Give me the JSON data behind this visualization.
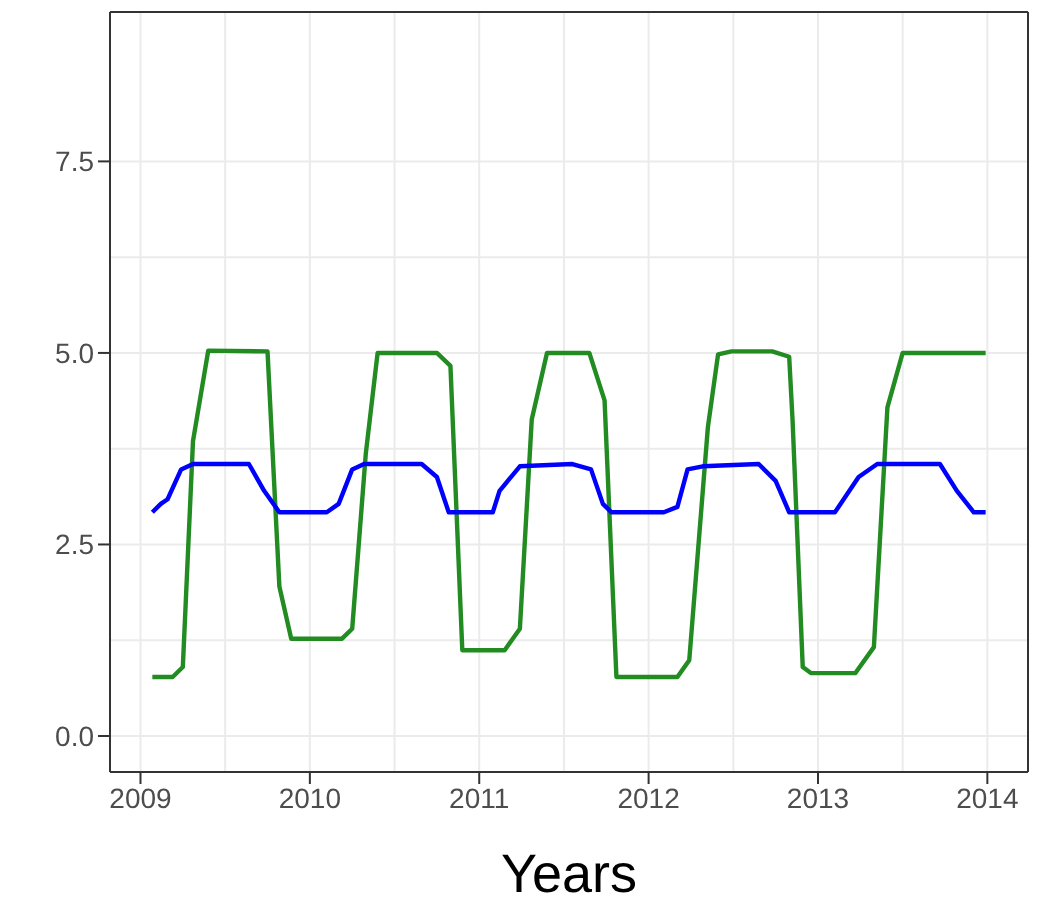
{
  "chart_data": {
    "type": "line",
    "xlabel": "Years",
    "xlim": [
      2008.82,
      2014.24
    ],
    "xticks": [
      2009,
      2010,
      2011,
      2012,
      2013,
      2014
    ],
    "ylim": [
      -0.47,
      9.45
    ],
    "yticks": [
      {
        "value": 0,
        "label": "0.0"
      },
      {
        "value": 2.5,
        "label": "2.5"
      },
      {
        "value": 5,
        "label": "5.0"
      },
      {
        "value": 7.5,
        "label": "7.5"
      }
    ],
    "grid": true,
    "marker": "none",
    "line_style": "solid",
    "series": [
      {
        "color": "#228b22",
        "x": [
          2009.07,
          2009.19,
          2009.25,
          2009.31,
          2009.4,
          2009.75,
          2009.82,
          2009.89,
          2010.19,
          2010.25,
          2010.33,
          2010.4,
          2010.75,
          2010.83,
          2010.9,
          2011.15,
          2011.24,
          2011.31,
          2011.4,
          2011.65,
          2011.74,
          2011.81,
          2012.17,
          2012.24,
          2012.35,
          2012.41,
          2012.49,
          2012.73,
          2012.83,
          2012.85,
          2012.91,
          2012.96,
          2013.22,
          2013.33,
          2013.41,
          2013.5,
          2013.99
        ],
        "values": [
          0.77,
          0.77,
          0.9,
          3.85,
          5.03,
          5.02,
          1.95,
          1.27,
          1.27,
          1.4,
          3.68,
          5.0,
          5.0,
          4.83,
          1.12,
          1.12,
          1.4,
          4.13,
          5.0,
          5.0,
          4.38,
          0.77,
          0.77,
          0.99,
          4.03,
          4.98,
          5.02,
          5.02,
          4.95,
          4.12,
          0.9,
          0.82,
          0.82,
          1.16,
          4.29,
          5.0,
          5.0
        ]
      },
      {
        "color": "#0000ff",
        "x": [
          2009.07,
          2009.12,
          2009.16,
          2009.24,
          2009.31,
          2009.64,
          2009.73,
          2009.82,
          2010.1,
          2010.17,
          2010.25,
          2010.32,
          2010.66,
          2010.75,
          2010.82,
          2011.08,
          2011.12,
          2011.24,
          2011.55,
          2011.66,
          2011.73,
          2011.78,
          2012.09,
          2012.17,
          2012.23,
          2012.32,
          2012.65,
          2012.75,
          2012.83,
          2013.1,
          2013.24,
          2013.35,
          2013.72,
          2013.82,
          2013.92,
          2013.99
        ],
        "values": [
          2.92,
          3.03,
          3.09,
          3.48,
          3.55,
          3.55,
          3.2,
          2.92,
          2.92,
          3.03,
          3.48,
          3.55,
          3.55,
          3.38,
          2.92,
          2.92,
          3.2,
          3.52,
          3.55,
          3.48,
          3.03,
          2.92,
          2.92,
          2.99,
          3.48,
          3.52,
          3.55,
          3.33,
          2.92,
          2.92,
          3.38,
          3.55,
          3.55,
          3.2,
          2.92,
          2.92
        ]
      }
    ]
  }
}
